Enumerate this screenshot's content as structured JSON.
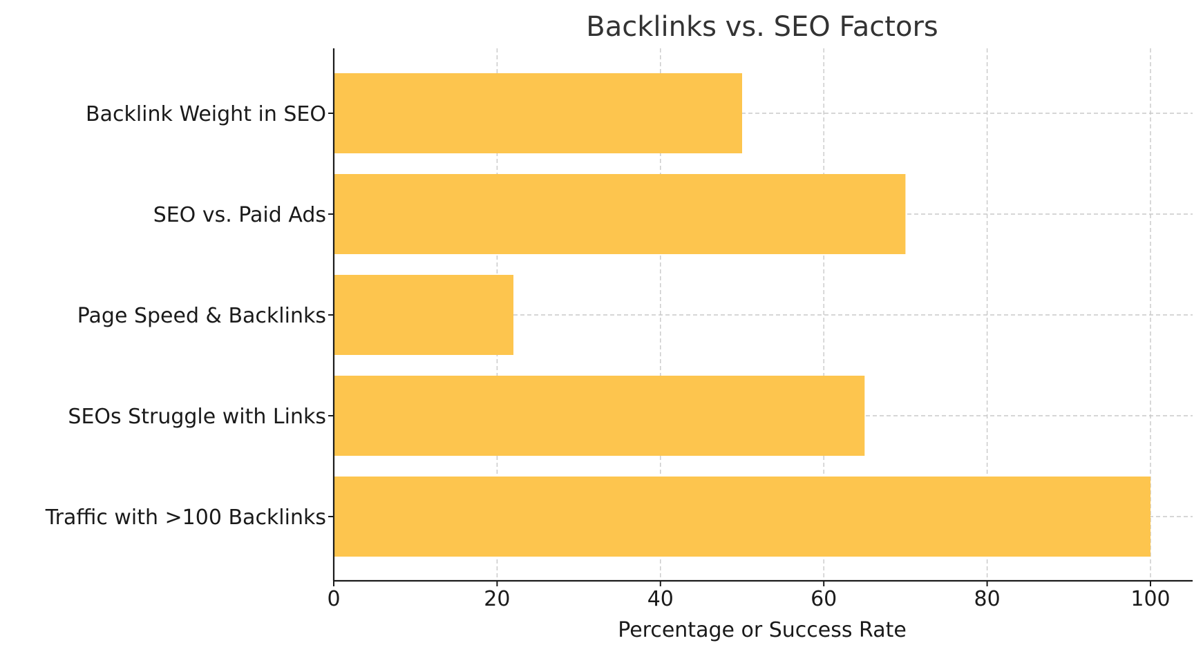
{
  "chart_data": {
    "type": "bar",
    "orientation": "horizontal",
    "title": "Backlinks vs. SEO Factors",
    "xlabel": "Percentage or Success Rate",
    "ylabel": "",
    "categories": [
      "Backlink Weight in SEO",
      "SEO vs. Paid Ads",
      "Page Speed & Backlinks",
      "SEOs Struggle with Links",
      "Traffic with >100 Backlinks"
    ],
    "values": [
      50,
      70,
      22,
      65,
      100
    ],
    "xlim": [
      0,
      105
    ],
    "xticks": [
      0,
      20,
      40,
      60,
      80,
      100
    ],
    "grid": true,
    "bar_color": "#fdc54e"
  }
}
